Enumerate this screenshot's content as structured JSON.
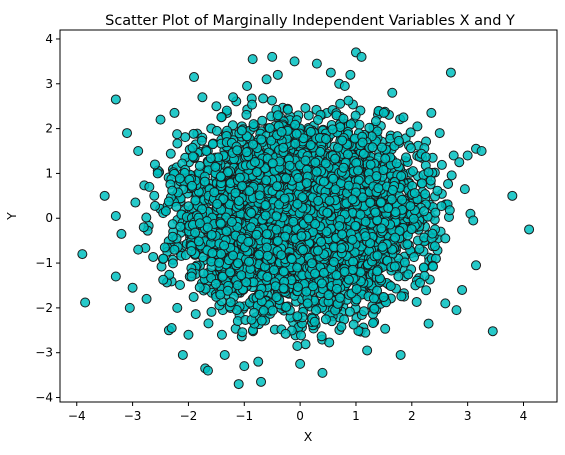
{
  "chart_data": {
    "type": "scatter",
    "title": "Scatter Plot of Marginally Independent Variables X and Y",
    "xlabel": "X",
    "ylabel": "Y",
    "xlim": [
      -4.3,
      4.6
    ],
    "ylim": [
      -4.1,
      4.2
    ],
    "xticks": [
      -4,
      -3,
      -2,
      -1,
      0,
      1,
      2,
      3,
      4
    ],
    "yticks": [
      -4,
      -3,
      -2,
      -1,
      0,
      1,
      2,
      3,
      4
    ],
    "grid": false,
    "legend": "none",
    "marker_color": "#00BFBF",
    "marker_edge_color": "#1a1a1a",
    "marker_alpha": 0.85,
    "series": [
      {
        "points": [
          [
            -3.9,
            -0.8
          ],
          [
            -3.85,
            -1.88
          ],
          [
            -3.5,
            0.5
          ],
          [
            -3.3,
            2.65
          ],
          [
            -3.3,
            -1.3
          ],
          [
            -3.3,
            0.05
          ],
          [
            -3.1,
            1.9
          ],
          [
            -3.0,
            -1.55
          ],
          [
            -3.05,
            -2.0
          ],
          [
            -2.95,
            0.35
          ],
          [
            -2.9,
            1.5
          ],
          [
            -2.8,
            -0.2
          ],
          [
            -2.75,
            -1.8
          ],
          [
            -2.7,
            0.7
          ],
          [
            -2.6,
            1.2
          ],
          [
            -2.5,
            2.2
          ],
          [
            -2.45,
            -0.9
          ],
          [
            -2.35,
            -2.5
          ],
          [
            -2.3,
            -2.45
          ],
          [
            -2.25,
            2.35
          ],
          [
            -2.2,
            -2.0
          ],
          [
            -2.1,
            -3.05
          ],
          [
            -1.9,
            3.15
          ],
          [
            -1.75,
            2.7
          ],
          [
            -1.7,
            -3.35
          ],
          [
            -1.65,
            -3.4
          ],
          [
            -1.5,
            2.5
          ],
          [
            -1.4,
            -2.6
          ],
          [
            -1.35,
            -3.05
          ],
          [
            -1.2,
            2.7
          ],
          [
            -1.1,
            -3.7
          ],
          [
            -1.0,
            -3.3
          ],
          [
            -0.95,
            2.95
          ],
          [
            -0.85,
            3.55
          ],
          [
            -0.75,
            -3.2
          ],
          [
            -0.7,
            -3.65
          ],
          [
            -0.6,
            3.1
          ],
          [
            -0.5,
            3.6
          ],
          [
            -0.4,
            3.2
          ],
          [
            -0.1,
            3.5
          ],
          [
            -0.05,
            -2.85
          ],
          [
            0.0,
            -3.25
          ],
          [
            0.3,
            3.45
          ],
          [
            0.4,
            -3.45
          ],
          [
            0.55,
            3.25
          ],
          [
            0.7,
            3.0
          ],
          [
            0.8,
            2.95
          ],
          [
            0.9,
            3.2
          ],
          [
            1.0,
            3.7
          ],
          [
            1.1,
            3.6
          ],
          [
            1.2,
            -2.95
          ],
          [
            1.5,
            2.35
          ],
          [
            1.65,
            2.8
          ],
          [
            1.8,
            -3.05
          ],
          [
            1.85,
            2.25
          ],
          [
            2.1,
            2.05
          ],
          [
            2.3,
            -2.35
          ],
          [
            2.35,
            2.35
          ],
          [
            2.5,
            1.9
          ],
          [
            2.6,
            -1.9
          ],
          [
            2.7,
            3.25
          ],
          [
            2.75,
            1.4
          ],
          [
            2.85,
            1.25
          ],
          [
            2.95,
            0.65
          ],
          [
            3.0,
            1.4
          ],
          [
            3.05,
            0.1
          ],
          [
            3.1,
            -0.05
          ],
          [
            3.15,
            -1.05
          ],
          [
            3.15,
            1.55
          ],
          [
            3.25,
            1.5
          ],
          [
            3.45,
            -2.52
          ],
          [
            3.8,
            0.5
          ],
          [
            4.1,
            -0.25
          ],
          [
            2.9,
            -1.6
          ],
          [
            -2.9,
            -0.7
          ],
          [
            -2.55,
            1.0
          ],
          [
            2.6,
            -0.45
          ],
          [
            -3.2,
            -0.35
          ],
          [
            2.8,
            -2.05
          ],
          [
            -2.0,
            -2.6
          ]
        ]
      }
    ],
    "core_cloud": {
      "count": 5000,
      "mean_x": 0.0,
      "mean_y": 0.0,
      "sd_x": 1.0,
      "sd_y": 1.0
    }
  }
}
